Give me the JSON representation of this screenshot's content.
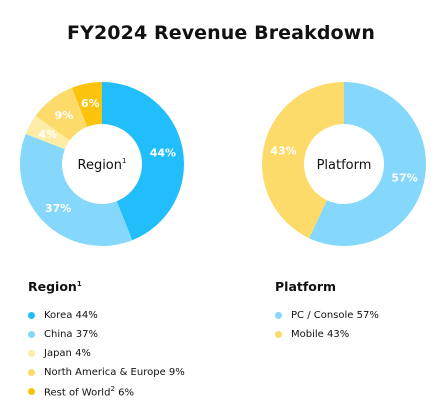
{
  "title": "FY2024 Revenue Breakdown",
  "colors": {
    "korea": "#22bdfb",
    "china": "#85d8fb",
    "japan": "#feeda6",
    "na_europe": "#fddb6a",
    "rest": "#fcc30c",
    "pc_console": "#85d8fb",
    "mobile": "#fddb6a"
  },
  "chart_data": [
    {
      "type": "pie",
      "center_label": "Region",
      "center_sup": "1",
      "categories": [
        "Korea",
        "China",
        "Japan",
        "North America & Europe",
        "Rest of World"
      ],
      "values": [
        44,
        37,
        4,
        9,
        6
      ],
      "data_labels": [
        "44%",
        "37%",
        "4%",
        "9%",
        "6%"
      ]
    },
    {
      "type": "pie",
      "center_label": "Platform",
      "categories": [
        "PC / Console",
        "Mobile"
      ],
      "values": [
        57,
        43
      ],
      "data_labels": [
        "57%",
        "43%"
      ]
    }
  ],
  "legend_left": {
    "title": "Region",
    "title_sup": "1",
    "items": [
      {
        "label": "Korea 44%",
        "color": "#22bdfb"
      },
      {
        "label": "China 37%",
        "color": "#85d8fb"
      },
      {
        "label": "Japan 4%",
        "color": "#feeda6"
      },
      {
        "label": "North America & Europe 9%",
        "color": "#fddb6a"
      },
      {
        "label": "Rest of World",
        "sup": "2",
        "suffix": " 6%",
        "color": "#fcc30c"
      }
    ]
  },
  "legend_right": {
    "title": "Platform",
    "items": [
      {
        "label": "PC / Console 57%",
        "color": "#85d8fb"
      },
      {
        "label": "Mobile 43%",
        "color": "#fddb6a"
      }
    ]
  }
}
